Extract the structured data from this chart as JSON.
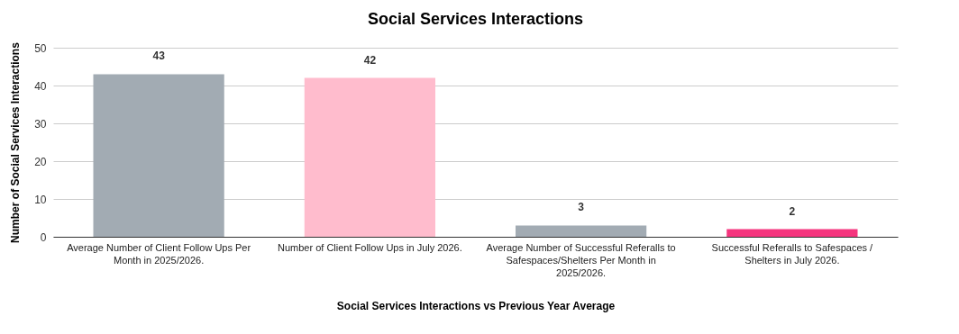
{
  "chart_data": {
    "type": "bar",
    "title": "Social Services Interactions",
    "xlabel": "Social Services Interactions vs Previous Year Average",
    "ylabel": "Number of Social Services Interactions",
    "categories": [
      "Average Number of Client Follow Ups Per Month in 2025/2026.",
      "Number of Client Follow Ups in July 2026.",
      "Average Number of Successful Referalls to Safespaces/Shelters Per Month in 2025/2026.",
      "Successful Referalls to Safespaces / Shelters in July 2026."
    ],
    "values": [
      43,
      42,
      3,
      2
    ],
    "colors": [
      "#a2abb3",
      "#ffbccd",
      "#a2abb3",
      "#f5357e"
    ],
    "ylim": [
      0,
      50
    ],
    "yticks": [
      0,
      10,
      20,
      30,
      40,
      50
    ],
    "grid": "y",
    "data_labels": true
  }
}
